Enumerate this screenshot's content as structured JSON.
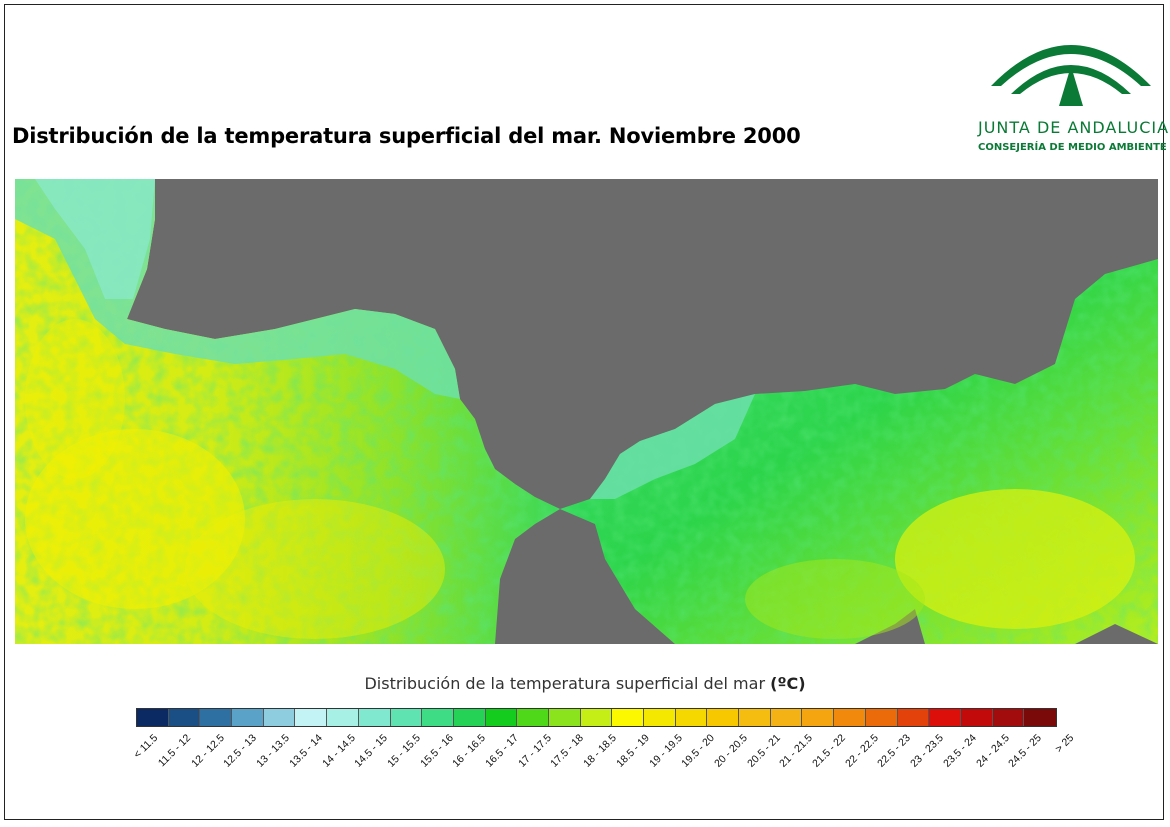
{
  "title": "Distribución de la temperatura superficial del mar. Noviembre 2000",
  "logo": {
    "name": "JUNTA DE ANDALUCIA",
    "subtitle": "CONSEJERÍA DE MEDIO AMBIENTE",
    "brand_color": "#0a7a36"
  },
  "map": {
    "land_color": "#6b6b6b",
    "description_colors": {
      "cool_coast": "#7fe3c0",
      "mid_sea": "#25d14a",
      "warm_sea": "#f2f000"
    }
  },
  "legend": {
    "title": "Distribución de la temperatura superficial del mar",
    "unit": "(ºC)",
    "classes": [
      {
        "label": "< 11.5",
        "color": "#0b2a63"
      },
      {
        "label": "11.5 - 12",
        "color": "#1a4f86"
      },
      {
        "label": "12 - 12.5",
        "color": "#2f70a3"
      },
      {
        "label": "12.5 - 13",
        "color": "#5aa2c8"
      },
      {
        "label": "13 - 13.5",
        "color": "#8ecde0"
      },
      {
        "label": "13.5 - 14",
        "color": "#c4f3f6"
      },
      {
        "label": "14 - 14.5",
        "color": "#a6f0e6"
      },
      {
        "label": "14.5 - 15",
        "color": "#7fe8cf"
      },
      {
        "label": "15 - 15.5",
        "color": "#5fe3b0"
      },
      {
        "label": "15.5 - 16",
        "color": "#3fdc86"
      },
      {
        "label": "16 - 16.5",
        "color": "#25d256"
      },
      {
        "label": "16.5 - 17",
        "color": "#14cc1e"
      },
      {
        "label": "17 - 17.5",
        "color": "#4fd81a"
      },
      {
        "label": "17.5 - 18",
        "color": "#8ae31c"
      },
      {
        "label": "18 - 18.5",
        "color": "#c4ee16"
      },
      {
        "label": "18.5 - 19",
        "color": "#fbf800"
      },
      {
        "label": "19 - 19.5",
        "color": "#f4e800"
      },
      {
        "label": "19.5 - 20",
        "color": "#f5d800"
      },
      {
        "label": "20 - 20.5",
        "color": "#f7c800"
      },
      {
        "label": "20.5 - 21",
        "color": "#f5bd10"
      },
      {
        "label": "21 - 21.5",
        "color": "#f5b214"
      },
      {
        "label": "21.5 - 22",
        "color": "#f5a510"
      },
      {
        "label": "22 - 22.5",
        "color": "#f18a0c"
      },
      {
        "label": "22.5 - 23",
        "color": "#eb6a0a"
      },
      {
        "label": "23 - 23.5",
        "color": "#e3420a"
      },
      {
        "label": "23.5 - 24",
        "color": "#dc0f0a"
      },
      {
        "label": "24 - 24.5",
        "color": "#c20a0a"
      },
      {
        "label": "24.5 - 25",
        "color": "#a30c0c"
      },
      {
        "label": "> 25",
        "color": "#7a0a0a"
      }
    ]
  }
}
